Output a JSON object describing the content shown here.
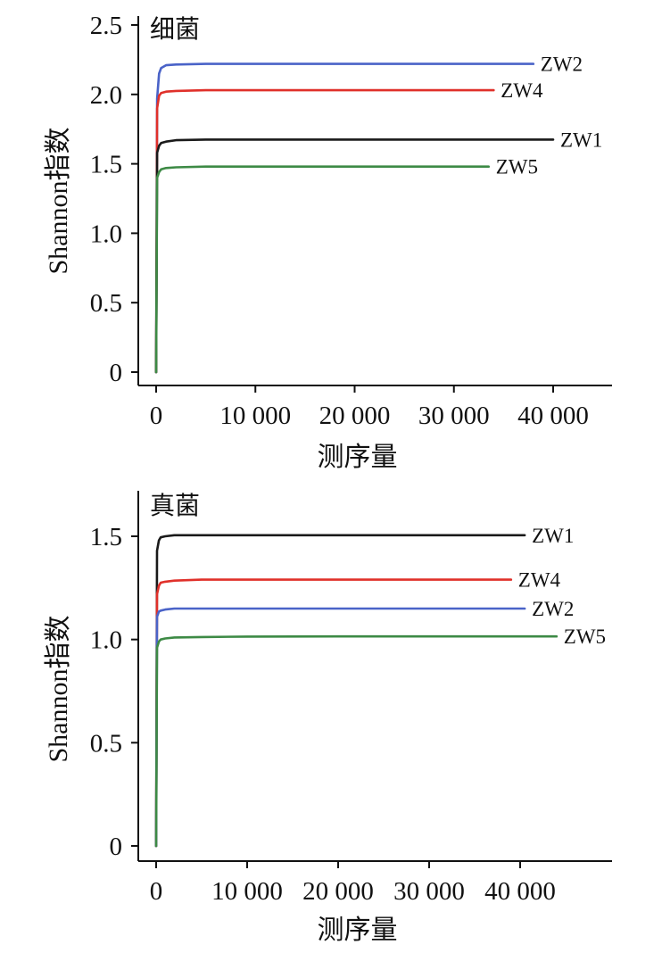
{
  "chart_data": [
    {
      "type": "line",
      "panel_label": "细菌",
      "xlabel": "测序量",
      "ylabel": "Shannon指数",
      "xlim": [
        -2000,
        46000
      ],
      "ylim": [
        -0.08,
        2.57
      ],
      "xticks": [
        0,
        10000,
        20000,
        30000,
        40000
      ],
      "xtick_labels": [
        "0",
        "10 000",
        "20 000",
        "30 000",
        "40 000"
      ],
      "yticks": [
        0,
        0.5,
        1.0,
        1.5,
        2.0,
        2.5
      ],
      "ytick_labels": [
        "0",
        "0.5",
        "1.0",
        "1.5",
        "2.0",
        "2.5"
      ],
      "legend": "labels at line ends",
      "series": [
        {
          "name": "ZW2",
          "color": "#4a63c8",
          "x": [
            0,
            100,
            300,
            500,
            1000,
            2000,
            5000,
            10000,
            20000,
            30000,
            38000
          ],
          "y": [
            0,
            1.97,
            2.15,
            2.19,
            2.21,
            2.215,
            2.22,
            2.22,
            2.22,
            2.22,
            2.22
          ]
        },
        {
          "name": "ZW4",
          "color": "#e0302a",
          "x": [
            0,
            100,
            300,
            500,
            1000,
            2000,
            5000,
            10000,
            20000,
            30000,
            34000
          ],
          "y": [
            0,
            1.9,
            1.99,
            2.01,
            2.02,
            2.025,
            2.03,
            2.03,
            2.03,
            2.03,
            2.03
          ]
        },
        {
          "name": "ZW1",
          "color": "#1a1a1a",
          "x": [
            0,
            100,
            300,
            500,
            1000,
            2000,
            5000,
            10000,
            20000,
            30000,
            40000
          ],
          "y": [
            0,
            1.58,
            1.63,
            1.65,
            1.66,
            1.67,
            1.675,
            1.675,
            1.675,
            1.675,
            1.675
          ]
        },
        {
          "name": "ZW5",
          "color": "#3d8a45",
          "x": [
            0,
            100,
            300,
            500,
            1000,
            2000,
            5000,
            10000,
            20000,
            30000,
            33500
          ],
          "y": [
            0,
            1.4,
            1.44,
            1.46,
            1.47,
            1.475,
            1.48,
            1.48,
            1.48,
            1.48,
            1.48
          ]
        }
      ]
    },
    {
      "type": "line",
      "panel_label": "真菌",
      "xlabel": "测序量",
      "ylabel": "Shannon指数",
      "xlim": [
        -2000,
        50000
      ],
      "ylim": [
        -0.02,
        1.67
      ],
      "xticks": [
        0,
        10000,
        20000,
        30000,
        40000
      ],
      "xtick_labels": [
        "0",
        "10 000",
        "20 000",
        "30 000",
        "40 000"
      ],
      "yticks": [
        0,
        0.5,
        1.0,
        1.5
      ],
      "ytick_labels": [
        "0",
        "0.5",
        "1.0",
        "1.5"
      ],
      "legend": "labels at line ends",
      "series": [
        {
          "name": "ZW1",
          "color": "#1a1a1a",
          "x": [
            0,
            100,
            300,
            500,
            1000,
            2000,
            5000,
            10000,
            20000,
            30000,
            40500
          ],
          "y": [
            0,
            1.43,
            1.48,
            1.495,
            1.5,
            1.505,
            1.505,
            1.505,
            1.505,
            1.505,
            1.505
          ]
        },
        {
          "name": "ZW4",
          "color": "#e0302a",
          "x": [
            0,
            100,
            300,
            500,
            1000,
            2000,
            5000,
            10000,
            20000,
            30000,
            39000
          ],
          "y": [
            0,
            1.22,
            1.26,
            1.275,
            1.28,
            1.285,
            1.29,
            1.29,
            1.29,
            1.29,
            1.29
          ]
        },
        {
          "name": "ZW2",
          "color": "#4a63c8",
          "x": [
            0,
            100,
            300,
            500,
            1000,
            2000,
            5000,
            10000,
            20000,
            30000,
            40500
          ],
          "y": [
            0,
            1.11,
            1.135,
            1.14,
            1.145,
            1.15,
            1.15,
            1.15,
            1.15,
            1.15,
            1.15
          ]
        },
        {
          "name": "ZW5",
          "color": "#3d8a45",
          "x": [
            0,
            100,
            300,
            500,
            1000,
            2000,
            5000,
            10000,
            20000,
            30000,
            44000
          ],
          "y": [
            0,
            0.96,
            0.99,
            1.0,
            1.005,
            1.01,
            1.012,
            1.014,
            1.015,
            1.015,
            1.015
          ]
        }
      ]
    }
  ]
}
